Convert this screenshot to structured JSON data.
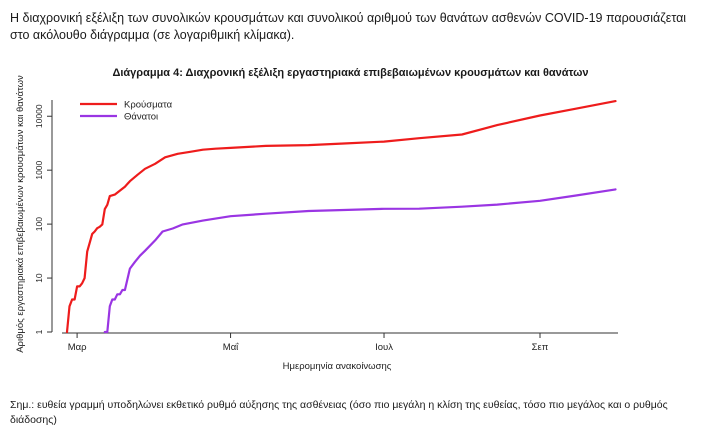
{
  "intro_text": "Η διαχρονική εξέλιξη των συνολικών κρουσμάτων και συνολικού αριθμού των θανάτων ασθενών COVID-19 παρουσιάζεται στο ακόλουθο διάγραμμα (σε λογαριθμική κλίμακα).",
  "note_text": "Σημ.: ευθεία γραμμή υποδηλώνει εκθετικό ρυθμό αύξησης της ασθένειας (όσο πιο μεγάλη η κλίση της ευθείας, τόσο πιο μεγάλος και ο ρυθμός διάδοσης)",
  "chart_data": {
    "type": "line",
    "title": "Διάγραμμα 4: Διαχρονική εξέλιξη εργαστηριακά επιβεβαιωμένων κρουσμάτων και θανάτων",
    "xlabel": "Ημερομηνία ανακοίνωσης",
    "ylabel": "Αριθμός εργαστηριακά επιβεβαιωμένων κρουσμάτων και θανάτων",
    "y_scale": "log",
    "ylim": [
      1,
      20000
    ],
    "yticks": [
      1,
      10,
      100,
      1000,
      10000
    ],
    "ytick_labels": [
      "1",
      "10",
      "100",
      "1000",
      "10000"
    ],
    "xlim": [
      "2020-02-24",
      "2020-10-02"
    ],
    "xticks": [
      "2020-03-01",
      "2020-05-01",
      "2020-07-01",
      "2020-09-01"
    ],
    "xtick_labels": [
      "Μαρ",
      "Μαΐ",
      "Ιουλ",
      "Σεπ"
    ],
    "grid": false,
    "legend": "top-left",
    "series": [
      {
        "name": "Κρούσματα",
        "color": "#ee1c1c",
        "points": [
          [
            "2020-02-26",
            1
          ],
          [
            "2020-02-27",
            3
          ],
          [
            "2020-02-28",
            4
          ],
          [
            "2020-02-29",
            4
          ],
          [
            "2020-03-01",
            7
          ],
          [
            "2020-03-02",
            7
          ],
          [
            "2020-03-03",
            8
          ],
          [
            "2020-03-04",
            10
          ],
          [
            "2020-03-05",
            31
          ],
          [
            "2020-03-06",
            45
          ],
          [
            "2020-03-07",
            66
          ],
          [
            "2020-03-08",
            73
          ],
          [
            "2020-03-09",
            84
          ],
          [
            "2020-03-10",
            89
          ],
          [
            "2020-03-11",
            99
          ],
          [
            "2020-03-12",
            190
          ],
          [
            "2020-03-13",
            228
          ],
          [
            "2020-03-14",
            331
          ],
          [
            "2020-03-16",
            352
          ],
          [
            "2020-03-18",
            418
          ],
          [
            "2020-03-20",
            495
          ],
          [
            "2020-03-22",
            624
          ],
          [
            "2020-03-25",
            821
          ],
          [
            "2020-03-28",
            1061
          ],
          [
            "2020-04-01",
            1314
          ],
          [
            "2020-04-05",
            1735
          ],
          [
            "2020-04-10",
            2011
          ],
          [
            "2020-04-15",
            2192
          ],
          [
            "2020-04-20",
            2401
          ],
          [
            "2020-04-25",
            2506
          ],
          [
            "2020-05-01",
            2591
          ],
          [
            "2020-05-15",
            2819
          ],
          [
            "2020-06-01",
            2918
          ],
          [
            "2020-06-15",
            3121
          ],
          [
            "2020-07-01",
            3390
          ],
          [
            "2020-07-15",
            3910
          ],
          [
            "2020-08-01",
            4587
          ],
          [
            "2020-08-15",
            6858
          ],
          [
            "2020-09-01",
            10317
          ],
          [
            "2020-09-15",
            13730
          ],
          [
            "2020-10-01",
            19079
          ]
        ]
      },
      {
        "name": "Θάνατοι",
        "color": "#9a35e3",
        "points": [
          [
            "2020-03-12",
            1
          ],
          [
            "2020-03-13",
            1
          ],
          [
            "2020-03-14",
            3
          ],
          [
            "2020-03-15",
            4
          ],
          [
            "2020-03-16",
            4
          ],
          [
            "2020-03-17",
            5
          ],
          [
            "2020-03-18",
            5
          ],
          [
            "2020-03-19",
            6
          ],
          [
            "2020-03-20",
            6
          ],
          [
            "2020-03-22",
            15
          ],
          [
            "2020-03-24",
            20
          ],
          [
            "2020-03-26",
            26
          ],
          [
            "2020-03-28",
            32
          ],
          [
            "2020-04-01",
            50
          ],
          [
            "2020-04-04",
            73
          ],
          [
            "2020-04-08",
            83
          ],
          [
            "2020-04-12",
            99
          ],
          [
            "2020-04-20",
            116
          ],
          [
            "2020-05-01",
            140
          ],
          [
            "2020-05-15",
            156
          ],
          [
            "2020-06-01",
            175
          ],
          [
            "2020-06-15",
            183
          ],
          [
            "2020-07-01",
            192
          ],
          [
            "2020-07-15",
            193
          ],
          [
            "2020-08-01",
            210
          ],
          [
            "2020-08-15",
            230
          ],
          [
            "2020-09-01",
            271
          ],
          [
            "2020-09-15",
            338
          ],
          [
            "2020-10-01",
            441
          ]
        ]
      }
    ]
  }
}
